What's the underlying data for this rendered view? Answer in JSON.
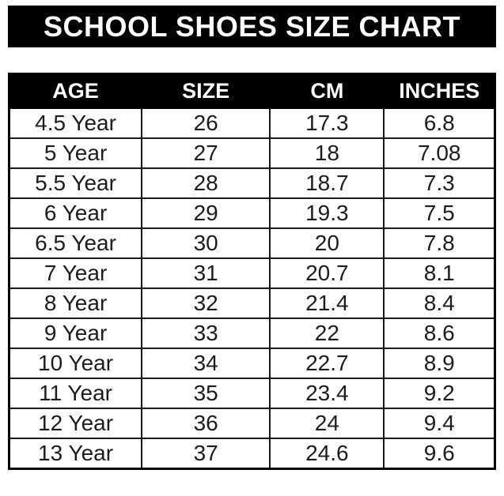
{
  "title": "SCHOOL SHOES SIZE CHART",
  "colors": {
    "banner_background": "#000000",
    "banner_text": "#ffffff",
    "header_background": "#000000",
    "header_text": "#ffffff",
    "cell_text": "#1c1c1c",
    "border": "#1a1a1a",
    "page_background": "#ffffff"
  },
  "table": {
    "columns": [
      "AGE",
      "SIZE",
      "CM",
      "INCHES"
    ],
    "rows": [
      [
        "4.5 Year",
        "26",
        "17.3",
        "6.8"
      ],
      [
        "5 Year",
        "27",
        "18",
        "7.08"
      ],
      [
        "5.5 Year",
        "28",
        "18.7",
        "7.3"
      ],
      [
        "6 Year",
        "29",
        "19.3",
        "7.5"
      ],
      [
        "6.5 Year",
        "30",
        "20",
        "7.8"
      ],
      [
        "7 Year",
        "31",
        "20.7",
        "8.1"
      ],
      [
        "8 Year",
        "32",
        "21.4",
        "8.4"
      ],
      [
        "9 Year",
        "33",
        "22",
        "8.6"
      ],
      [
        "10 Year",
        "34",
        "22.7",
        "8.9"
      ],
      [
        "11 Year",
        "35",
        "23.4",
        "9.2"
      ],
      [
        "12 Year",
        "36",
        "24",
        "9.4"
      ],
      [
        "13 Year",
        "37",
        "24.6",
        "9.6"
      ]
    ]
  },
  "chart_data": {
    "type": "table",
    "title": "SCHOOL SHOES SIZE CHART",
    "columns": [
      "AGE",
      "SIZE",
      "CM",
      "INCHES"
    ],
    "rows": [
      [
        "4.5 Year",
        26,
        17.3,
        6.8
      ],
      [
        "5 Year",
        27,
        18,
        7.08
      ],
      [
        "5.5 Year",
        28,
        18.7,
        7.3
      ],
      [
        "6 Year",
        29,
        19.3,
        7.5
      ],
      [
        "6.5 Year",
        30,
        20,
        7.8
      ],
      [
        "7 Year",
        31,
        20.7,
        8.1
      ],
      [
        "8 Year",
        32,
        21.4,
        8.4
      ],
      [
        "9 Year",
        33,
        22,
        8.6
      ],
      [
        "10 Year",
        34,
        22.7,
        8.9
      ],
      [
        "11 Year",
        35,
        23.4,
        9.2
      ],
      [
        "12 Year",
        36,
        24,
        9.4
      ],
      [
        "13 Year",
        37,
        24.6,
        9.6
      ]
    ]
  }
}
